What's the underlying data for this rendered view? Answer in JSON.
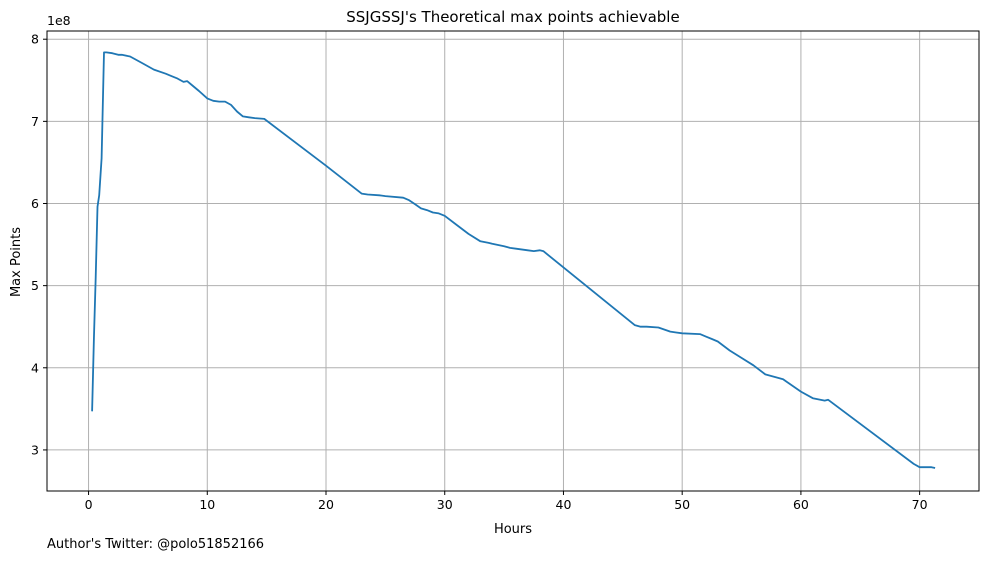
{
  "chart_data": {
    "type": "line",
    "title": "SSJGSSJ's Theoretical max points achievable",
    "xlabel": "Hours",
    "ylabel": "Max Points",
    "offset_label": "1e8",
    "xlim": [
      -3.5,
      75
    ],
    "ylim": [
      2.5,
      8.1
    ],
    "xticks": [
      0,
      10,
      20,
      30,
      40,
      50,
      60,
      70
    ],
    "yticks": [
      3,
      4,
      5,
      6,
      7,
      8
    ],
    "grid": true,
    "line_color": "#1f77b4",
    "series": [
      {
        "x": [
          0.3,
          0.45,
          0.6,
          0.75,
          0.9,
          1.1,
          1.3,
          1.5,
          2.0,
          2.5,
          2.8,
          3.5,
          4.5,
          5.5,
          6.5,
          7.0,
          7.5,
          8.0,
          8.3,
          8.8,
          9.3,
          10.0,
          10.5,
          11.0,
          11.5,
          12.0,
          12.5,
          13.0,
          13.5,
          14.0,
          14.8,
          20.0,
          23.0,
          23.5,
          24.5,
          25.0,
          26.5,
          27.0,
          27.5,
          28.0,
          28.5,
          29.0,
          29.5,
          30.0,
          31.0,
          32.0,
          33.0,
          33.7,
          34.0,
          35.0,
          35.5,
          36.0,
          37.0,
          37.5,
          38.0,
          38.3,
          46.0,
          46.5,
          47.0,
          48.0,
          49.0,
          49.5,
          50.0,
          51.5,
          52.0,
          52.5,
          53.0,
          54.0,
          55.0,
          56.0,
          57.0,
          58.0,
          58.5,
          59.0,
          60.0,
          61.0,
          62.0,
          62.3,
          69.5,
          70.0,
          70.5,
          71.0,
          71.3
        ],
        "y": [
          3.47,
          4.35,
          5.1,
          5.96,
          6.1,
          6.55,
          7.84,
          7.84,
          7.83,
          7.81,
          7.81,
          7.79,
          7.71,
          7.63,
          7.58,
          7.55,
          7.52,
          7.48,
          7.49,
          7.43,
          7.37,
          7.28,
          7.25,
          7.24,
          7.24,
          7.2,
          7.12,
          7.06,
          7.05,
          7.04,
          7.03,
          6.46,
          6.12,
          6.11,
          6.1,
          6.09,
          6.07,
          6.04,
          5.99,
          5.94,
          5.92,
          5.89,
          5.88,
          5.85,
          5.74,
          5.63,
          5.54,
          5.52,
          5.51,
          5.48,
          5.46,
          5.45,
          5.43,
          5.42,
          5.43,
          5.42,
          4.52,
          4.5,
          4.5,
          4.49,
          4.44,
          4.43,
          4.42,
          4.41,
          4.38,
          4.35,
          4.32,
          4.21,
          4.12,
          4.03,
          3.92,
          3.88,
          3.86,
          3.81,
          3.71,
          3.63,
          3.6,
          3.61,
          2.83,
          2.79,
          2.79,
          2.79,
          2.78
        ]
      }
    ]
  },
  "footnote": "Author's Twitter: @polo51852166"
}
